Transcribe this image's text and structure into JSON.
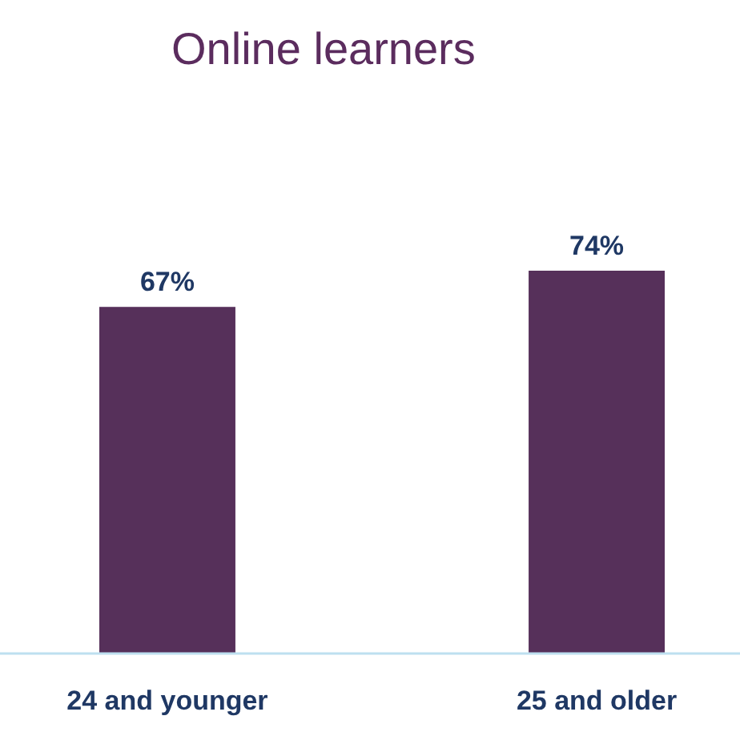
{
  "chart_data": {
    "type": "bar",
    "title": "Online learners",
    "categories": [
      "24 and younger",
      "25 and older"
    ],
    "values": [
      67,
      74
    ],
    "color": "#56305a",
    "tick_labels": "x",
    "data_labels": true,
    "value_labels": [
      "67%",
      "74%"
    ]
  }
}
